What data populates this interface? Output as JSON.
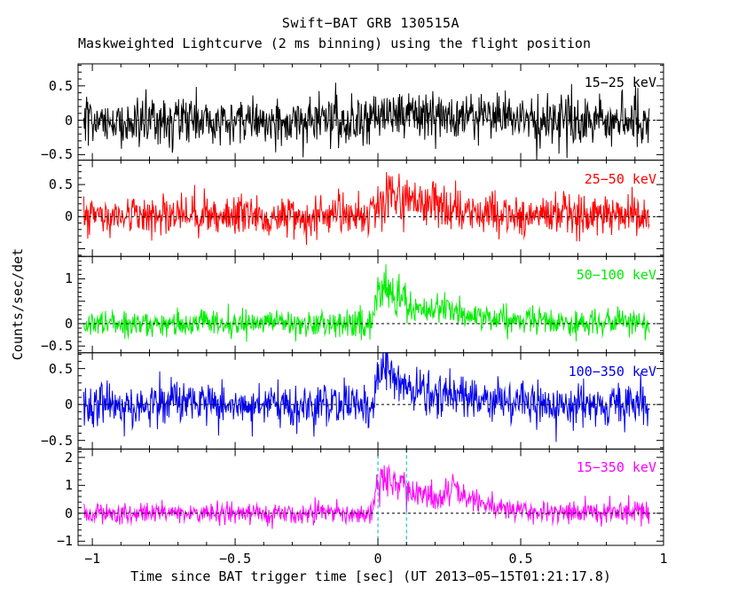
{
  "chart_data": {
    "type": "line",
    "title": "Swift−BAT GRB 130515A",
    "subtitle": "Maskweighted Lightcurve (2 ms binning) using the flight position",
    "xlabel": "Time since BAT trigger time [sec] (UT 2013−05−15T01:21:17.8)",
    "ylabel": "Counts/sec/det",
    "xlim": [
      -1.05,
      1.0
    ],
    "data_t_start": -1.03,
    "data_t_end": 0.952,
    "bin_sec": 0.002,
    "x_major": 0.5,
    "x_minor": 0.1,
    "xticks": [
      {
        "v": -1,
        "label": "−1"
      },
      {
        "v": -0.5,
        "label": "−0.5"
      },
      {
        "v": 0,
        "label": "0"
      },
      {
        "v": 0.5,
        "label": "0.5"
      },
      {
        "v": 1,
        "label": "1"
      }
    ],
    "axis_color": "#000000",
    "zero_line": {
      "style": "dashed",
      "color": "#000000"
    },
    "duration_markers": {
      "panel_index": 4,
      "times": [
        0.0,
        0.1
      ],
      "color": "#00b4b4",
      "style": "dashed"
    },
    "panels": [
      {
        "label": "15−25 keV",
        "color": "#000000",
        "seed": 101,
        "ylim": [
          -0.58,
          0.82
        ],
        "y_major": 0.5,
        "y_minor": 0.1,
        "yticks": [
          {
            "v": -0.5,
            "label": "−0.5"
          },
          {
            "v": 0,
            "label": "0"
          },
          {
            "v": 0.5,
            "label": "0.5"
          }
        ],
        "noise_sigma": 0.175,
        "bursts": [
          {
            "t0": -0.05,
            "rise": 0.05,
            "decay": 0.3,
            "amp": 0.14
          }
        ]
      },
      {
        "label": "25−50 keV",
        "color": "#ff0000",
        "seed": 202,
        "ylim": [
          -0.62,
          0.88
        ],
        "y_major": 0.5,
        "y_minor": 0.1,
        "yticks": [
          {
            "v": 0,
            "label": "0"
          },
          {
            "v": 0.5,
            "label": "0.5"
          }
        ],
        "noise_sigma": 0.16,
        "bursts": [
          {
            "t0": -0.03,
            "rise": 0.04,
            "decay": 0.2,
            "amp": 0.55
          }
        ]
      },
      {
        "label": "50−100 keV",
        "color": "#00ee00",
        "seed": 303,
        "ylim": [
          -0.65,
          1.5
        ],
        "y_major": 0.5,
        "y_minor": 0.1,
        "yticks": [
          {
            "v": -0.5,
            "label": "−0.5"
          },
          {
            "v": 0,
            "label": "0"
          },
          {
            "v": 1,
            "label": "1"
          }
        ],
        "noise_sigma": 0.15,
        "bursts": [
          {
            "t0": -0.02,
            "rise": 0.025,
            "decay": 0.14,
            "amp": 1.15
          },
          {
            "t0": 0.18,
            "rise": 0.04,
            "decay": 0.12,
            "amp": 0.3
          }
        ]
      },
      {
        "label": "100−350 keV",
        "color": "#0000ee",
        "seed": 404,
        "ylim": [
          -0.62,
          0.72
        ],
        "y_major": 0.5,
        "y_minor": 0.1,
        "yticks": [
          {
            "v": -0.5,
            "label": "−0.5"
          },
          {
            "v": 0,
            "label": "0"
          },
          {
            "v": 0.5,
            "label": "0.5"
          }
        ],
        "noise_sigma": 0.15,
        "bursts": [
          {
            "t0": -0.015,
            "rise": 0.015,
            "decay": 0.09,
            "amp": 0.85
          },
          {
            "t0": 0.12,
            "rise": 0.05,
            "decay": 0.15,
            "amp": 0.22
          }
        ]
      },
      {
        "label": "15−350 keV",
        "color": "#ff00ff",
        "seed": 505,
        "ylim": [
          -1.15,
          2.3
        ],
        "y_major": 1.0,
        "y_minor": 0.2,
        "yticks": [
          {
            "v": -1,
            "label": "−1"
          },
          {
            "v": 0,
            "label": "0"
          },
          {
            "v": 1,
            "label": "1"
          },
          {
            "v": 2,
            "label": "2"
          }
        ],
        "noise_sigma": 0.19,
        "bursts": [
          {
            "t0": -0.02,
            "rise": 0.025,
            "decay": 0.16,
            "amp": 1.9
          },
          {
            "t0": 0.22,
            "rise": 0.02,
            "decay": 0.09,
            "amp": 1.0
          }
        ]
      }
    ]
  }
}
